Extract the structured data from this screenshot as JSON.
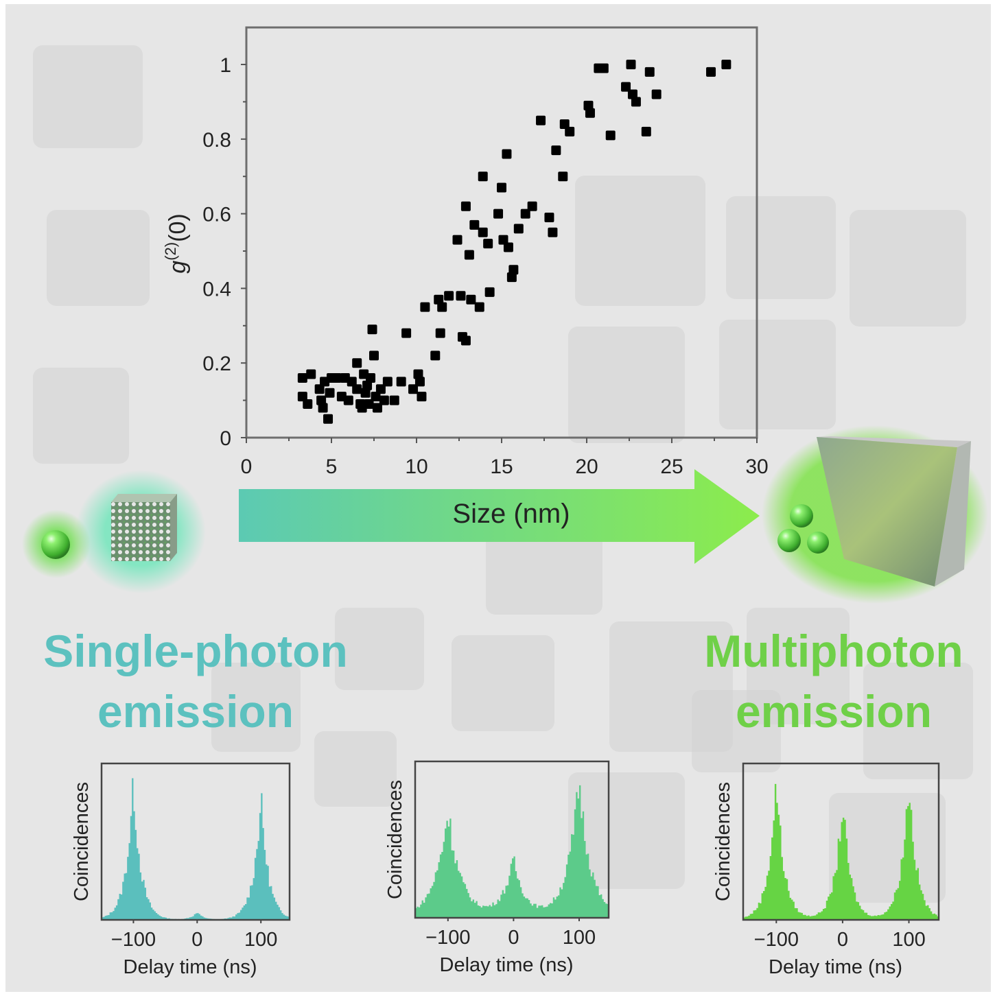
{
  "chart_data": [
    {
      "id": "main",
      "type": "scatter",
      "title": "",
      "xlabel": "Size (nm)",
      "ylabel": "g(2)(0)",
      "ylabel_base": "g",
      "ylabel_sup": "(2)",
      "ylabel_tail": "(0)",
      "xlim": [
        0,
        30
      ],
      "ylim": [
        0,
        1.08
      ],
      "xticks": [
        0,
        5,
        10,
        15,
        20,
        25,
        30
      ],
      "xtick_labels": [
        "0",
        "5",
        "10",
        "15",
        "20",
        "25",
        "30"
      ],
      "yticks": [
        0,
        0.2,
        0.4,
        0.6,
        0.8,
        1
      ],
      "ytick_labels": [
        "0",
        "0.2",
        "0.4",
        "0.6",
        "0.8",
        "1"
      ],
      "grid": false,
      "marker": "square",
      "marker_color": "#000000",
      "points": [
        [
          3.3,
          0.16
        ],
        [
          3.3,
          0.11
        ],
        [
          3.6,
          0.09
        ],
        [
          3.8,
          0.17
        ],
        [
          4.3,
          0.13
        ],
        [
          4.4,
          0.1
        ],
        [
          4.5,
          0.08
        ],
        [
          4.8,
          0.05
        ],
        [
          4.6,
          0.15
        ],
        [
          4.9,
          0.12
        ],
        [
          5.0,
          0.16
        ],
        [
          5.3,
          0.16
        ],
        [
          5.6,
          0.11
        ],
        [
          5.8,
          0.16
        ],
        [
          6.0,
          0.1
        ],
        [
          6.2,
          0.15
        ],
        [
          6.5,
          0.2
        ],
        [
          6.5,
          0.13
        ],
        [
          6.7,
          0.09
        ],
        [
          6.8,
          0.08
        ],
        [
          6.9,
          0.17
        ],
        [
          7.0,
          0.12
        ],
        [
          7.1,
          0.14
        ],
        [
          7.2,
          0.09
        ],
        [
          7.3,
          0.16
        ],
        [
          7.4,
          0.29
        ],
        [
          7.5,
          0.22
        ],
        [
          7.6,
          0.11
        ],
        [
          7.7,
          0.08
        ],
        [
          7.9,
          0.13
        ],
        [
          8.1,
          0.1
        ],
        [
          8.3,
          0.15
        ],
        [
          8.7,
          0.1
        ],
        [
          9.1,
          0.15
        ],
        [
          9.4,
          0.28
        ],
        [
          9.8,
          0.13
        ],
        [
          10.1,
          0.17
        ],
        [
          10.2,
          0.15
        ],
        [
          10.3,
          0.11
        ],
        [
          10.5,
          0.35
        ],
        [
          11.1,
          0.22
        ],
        [
          11.3,
          0.37
        ],
        [
          11.4,
          0.28
        ],
        [
          11.5,
          0.35
        ],
        [
          11.9,
          0.38
        ],
        [
          12.4,
          0.53
        ],
        [
          12.6,
          0.38
        ],
        [
          12.7,
          0.27
        ],
        [
          12.9,
          0.62
        ],
        [
          12.9,
          0.26
        ],
        [
          13.1,
          0.49
        ],
        [
          13.2,
          0.37
        ],
        [
          13.4,
          0.57
        ],
        [
          13.7,
          0.35
        ],
        [
          13.9,
          0.7
        ],
        [
          13.9,
          0.55
        ],
        [
          14.2,
          0.52
        ],
        [
          14.3,
          0.39
        ],
        [
          14.8,
          0.6
        ],
        [
          15.0,
          0.67
        ],
        [
          15.1,
          0.53
        ],
        [
          15.3,
          0.76
        ],
        [
          15.4,
          0.51
        ],
        [
          15.6,
          0.43
        ],
        [
          15.7,
          0.45
        ],
        [
          16.0,
          0.56
        ],
        [
          16.4,
          0.6
        ],
        [
          16.8,
          0.62
        ],
        [
          17.3,
          0.85
        ],
        [
          17.8,
          0.59
        ],
        [
          18.0,
          0.55
        ],
        [
          18.2,
          0.77
        ],
        [
          18.6,
          0.7
        ],
        [
          18.7,
          0.84
        ],
        [
          19.0,
          0.82
        ],
        [
          20.1,
          0.89
        ],
        [
          20.2,
          0.87
        ],
        [
          20.7,
          0.99
        ],
        [
          21.0,
          0.99
        ],
        [
          21.4,
          0.81
        ],
        [
          22.3,
          0.94
        ],
        [
          22.6,
          1.0
        ],
        [
          22.7,
          0.92
        ],
        [
          22.9,
          0.9
        ],
        [
          23.5,
          0.82
        ],
        [
          23.7,
          0.98
        ],
        [
          24.1,
          0.92
        ],
        [
          27.3,
          0.98
        ],
        [
          28.2,
          1.0
        ]
      ]
    },
    {
      "id": "hist-single",
      "type": "area",
      "title": "",
      "xlabel": "Delay time (ns)",
      "ylabel": "Coincidences",
      "xlim": [
        -150,
        145
      ],
      "ylim": [
        0,
        1.0
      ],
      "xticks": [
        -100,
        0,
        100
      ],
      "xtick_labels": [
        "−100",
        "0",
        "100"
      ],
      "color": "#5bbfbd",
      "peaks": [
        {
          "center": -100,
          "height": 0.92,
          "width": 12
        },
        {
          "center": 0,
          "height": 0.05,
          "width": 10
        },
        {
          "center": 100,
          "height": 0.82,
          "width": 12
        }
      ]
    },
    {
      "id": "hist-mid",
      "type": "area",
      "title": "",
      "xlabel": "Delay time (ns)",
      "ylabel": "Coincidences",
      "xlim": [
        -150,
        145
      ],
      "ylim": [
        0,
        1.0
      ],
      "xticks": [
        -100,
        0,
        100
      ],
      "xtick_labels": [
        "−100",
        "0",
        "100"
      ],
      "color": "#5ccb8a",
      "peaks": [
        {
          "center": -100,
          "height": 0.72,
          "width": 20
        },
        {
          "center": 0,
          "height": 0.38,
          "width": 18
        },
        {
          "center": 100,
          "height": 0.92,
          "width": 18
        }
      ]
    },
    {
      "id": "hist-multi",
      "type": "area",
      "title": "",
      "xlabel": "Delay time (ns)",
      "ylabel": "Coincidences",
      "xlim": [
        -150,
        145
      ],
      "ylim": [
        0,
        1.0
      ],
      "xticks": [
        -100,
        0,
        100
      ],
      "xtick_labels": [
        "−100",
        "0",
        "100"
      ],
      "color": "#66d444",
      "peaks": [
        {
          "center": -100,
          "height": 0.94,
          "width": 12
        },
        {
          "center": 0,
          "height": 0.8,
          "width": 12
        },
        {
          "center": 100,
          "height": 0.95,
          "width": 12
        }
      ]
    }
  ],
  "labels": {
    "arrow_label": "Size (nm)",
    "single_title_line1": "Single-photon",
    "single_title_line2": "emission",
    "multi_title_line1": "Multiphoton",
    "multi_title_line2": "emission"
  },
  "colors": {
    "single": "#5cc1bf",
    "multi": "#6fd048",
    "arrow_start": "#5ccab3",
    "arrow_end": "#8cec4c"
  }
}
